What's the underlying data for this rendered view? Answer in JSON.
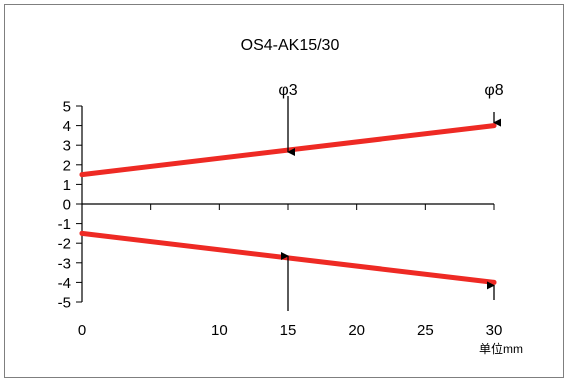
{
  "chart_data": {
    "type": "line",
    "title": "OS4-AK15/30",
    "xlabel": "",
    "ylabel": "",
    "unit_label": "单位mm",
    "xlim": [
      0,
      30
    ],
    "ylim": [
      -5,
      5
    ],
    "x_ticks": [
      0,
      5,
      10,
      15,
      20,
      25,
      30
    ],
    "x_tick_labels": [
      "0",
      "10",
      "15",
      "20",
      "25",
      "30"
    ],
    "x_tick_label_values": [
      0,
      10,
      15,
      20,
      25,
      30
    ],
    "y_ticks": [
      5,
      4,
      3,
      2,
      1,
      0,
      -1,
      -2,
      -3,
      -4,
      -5
    ],
    "y_tick_labels": [
      "5",
      "4",
      "3",
      "2",
      "1",
      "0",
      "-1",
      "-2",
      "-3",
      "-4",
      "-5"
    ],
    "grid": false,
    "legend": "none",
    "line_color": "#ee2a24",
    "series": [
      {
        "x": [
          0,
          30
        ],
        "values": [
          1.5,
          4
        ]
      },
      {
        "x": [
          0,
          30
        ],
        "values": [
          -1.5,
          -4
        ]
      }
    ],
    "annotations": [
      {
        "label": "φ3",
        "x": 15,
        "arrow_to": 2.5,
        "from_above": true,
        "bottom_arrow_to": -2.5
      },
      {
        "label": "φ8",
        "x": 30,
        "arrow_to": 4,
        "from_above": true,
        "bottom_arrow_to": -4
      }
    ]
  }
}
